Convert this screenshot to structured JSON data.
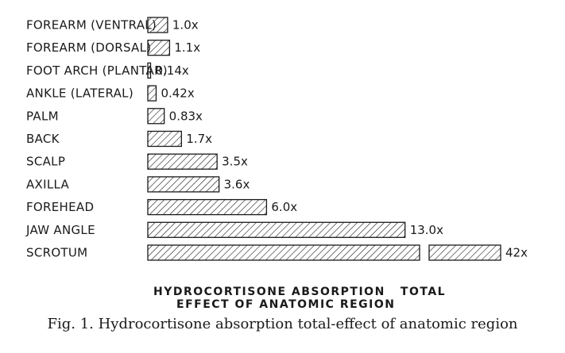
{
  "chart_data": {
    "type": "bar",
    "orientation": "horizontal",
    "categories": [
      "FOREARM (VENTRAL)",
      "FOREARM (DORSAL)",
      "FOOT ARCH (PLANTAR)",
      "ANKLE (LATERAL)",
      "PALM",
      "BACK",
      "SCALP",
      "AXILLA",
      "FOREHEAD",
      "JAW ANGLE",
      "SCROTUM"
    ],
    "values": [
      1.0,
      1.1,
      0.14,
      0.42,
      0.83,
      1.7,
      3.5,
      3.6,
      6.0,
      13.0,
      42
    ],
    "value_labels": [
      "1.0x",
      "1.1x",
      "0.14x",
      "0.42x",
      "0.83x",
      "1.7x",
      "3.5x",
      "3.6x",
      "6.0x",
      "13.0x",
      "42x"
    ],
    "broken_bars": [
      "SCROTUM"
    ],
    "subtitle_lines": [
      "HYDROCORTISONE ABSORPTION   TOTAL",
      "EFFECT OF ANATOMIC REGION"
    ],
    "grid": false,
    "fill_pattern": "diagonal-hatch",
    "bar_color": "#1a1a1a"
  },
  "caption": "Fig. 1. Hydrocortisone absorption total-effect of anatomic region"
}
